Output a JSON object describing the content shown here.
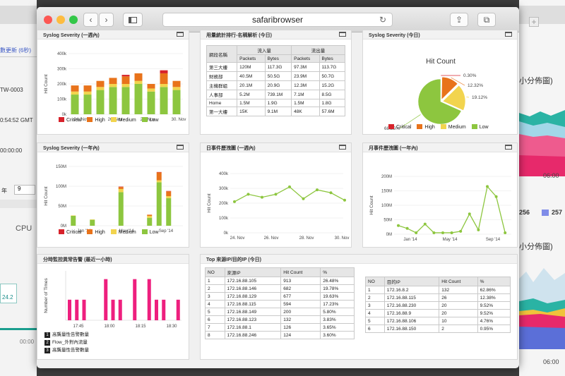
{
  "window": {
    "url": "safaribrowser"
  },
  "background": {
    "left_texts": [
      "數更新 (6秒)",
      "TW-0003",
      "0:54:52 GMT",
      "00:00:00",
      "年",
      "9",
      "CPU",
      "24.2",
      "00:00"
    ],
    "right_texts": [
      "小分佈圖)",
      "06:00",
      "256",
      "257",
      "小分佈圖)",
      "06:00"
    ]
  },
  "colors": {
    "critical": "#d7222b",
    "high": "#e8731b",
    "medium": "#f2d44e",
    "low": "#8dc63f",
    "line": "#8dc63f",
    "magenta": "#ee1f7e"
  },
  "legend": {
    "critical": "Critical",
    "high": "High",
    "medium": "Medium",
    "low": "Low"
  },
  "p1": {
    "title": "Syslog Severity (一週內)",
    "ylabel": "Hit Count",
    "yticks": [
      "400k",
      "300k",
      "200k",
      "100k",
      "0k"
    ],
    "xticks": [
      "24. Nov",
      "26. Nov",
      "28. Nov",
      "30. Nov"
    ],
    "chart_data": {
      "type": "bar",
      "stacked": true,
      "categories": [
        "23 Nov",
        "24 Nov",
        "25 Nov",
        "26 Nov",
        "27 Nov",
        "28 Nov",
        "29 Nov",
        "30 Nov",
        "1 Dec"
      ],
      "ylim": [
        0,
        400000
      ],
      "series": [
        {
          "name": "Low",
          "values": [
            130000,
            130000,
            160000,
            180000,
            180000,
            200000,
            150000,
            180000,
            160000
          ]
        },
        {
          "name": "Medium",
          "values": [
            20000,
            20000,
            20000,
            20000,
            20000,
            20000,
            20000,
            20000,
            20000
          ]
        },
        {
          "name": "High",
          "values": [
            40000,
            40000,
            40000,
            40000,
            50000,
            50000,
            30000,
            70000,
            40000
          ]
        },
        {
          "name": "Critical",
          "values": [
            0,
            0,
            0,
            0,
            10000,
            0,
            0,
            20000,
            0
          ]
        }
      ]
    }
  },
  "p2": {
    "title": "用量統計排行-名稱解析 (今日)",
    "h1": "網段名稱",
    "g1": "流入量",
    "g2": "流出量",
    "sub": [
      "Packets",
      "Bytes",
      "Packets",
      "Bytes"
    ],
    "rows": [
      [
        "第三大樓",
        "120M",
        "117.3G",
        "97.3M",
        "113.7G"
      ],
      [
        "財務部",
        "40.5M",
        "50.5G",
        "23.9M",
        "50.7G"
      ],
      [
        "主機群組",
        "20.1M",
        "20.9G",
        "12.3M",
        "15.2G"
      ],
      [
        "人事部",
        "5.2M",
        "739.1M",
        "7.1M",
        "8.5G"
      ],
      [
        "Home",
        "1.5M",
        "1.9G",
        "1.5M",
        "1.8G"
      ],
      [
        "第一大樓",
        "15K",
        "9.1M",
        "48K",
        "57.6M"
      ]
    ]
  },
  "p3": {
    "title": "Syslog Severity (今日)",
    "chart_title": "Hit Count",
    "chart_data": {
      "type": "pie",
      "labels": [
        "Critical",
        "High",
        "Medium",
        "Low"
      ],
      "values": [
        0.3,
        12.32,
        19.12,
        68.25
      ]
    },
    "labels": [
      "0.30%",
      "12.32%",
      "19.12%",
      "68.25%"
    ]
  },
  "p4": {
    "title": "Syslog Severity (一年內)",
    "ylabel": "Hit Count",
    "yticks": [
      "150M",
      "100M",
      "50M",
      "0M"
    ],
    "xticks": [
      "Jan '14",
      "May '14",
      "Sep '14"
    ],
    "chart_data": {
      "type": "bar",
      "stacked": true,
      "categories": [
        "Dec '13",
        "Jan '14",
        "Feb '14",
        "Mar '14",
        "Apr '14",
        "May '14",
        "Jun '14",
        "Jul '14",
        "Aug '14",
        "Sep '14",
        "Oct '14",
        "Nov '14"
      ],
      "ylim": [
        0,
        150000000
      ],
      "series": [
        {
          "name": "Low",
          "values": [
            25000000,
            0,
            15000000,
            0,
            0,
            85000000,
            0,
            0,
            20000000,
            110000000,
            70000000,
            0
          ]
        },
        {
          "name": "Medium",
          "values": [
            1000000,
            0,
            1000000,
            0,
            0,
            8000000,
            0,
            0,
            5000000,
            5000000,
            5000000,
            0
          ]
        },
        {
          "name": "High",
          "values": [
            0,
            0,
            0,
            0,
            0,
            5000000,
            0,
            0,
            3000000,
            20000000,
            12000000,
            0
          ]
        },
        {
          "name": "Critical",
          "values": [
            0,
            0,
            0,
            0,
            0,
            1000000,
            0,
            0,
            0,
            1000000,
            1000000,
            0
          ]
        }
      ]
    }
  },
  "p5": {
    "title": "日事件歷洩圖 (一週內)",
    "ylabel": "Hit Count",
    "yticks": [
      "400k",
      "300k",
      "200k",
      "100k",
      "0k"
    ],
    "xticks": [
      "24. Nov",
      "26. Nov",
      "28. Nov",
      "30. Nov"
    ],
    "chart_data": {
      "type": "line",
      "x": [
        "23 Nov",
        "24 Nov",
        "25 Nov",
        "26 Nov",
        "27 Nov",
        "28 Nov",
        "29 Nov",
        "30 Nov",
        "1 Dec"
      ],
      "y": [
        210000,
        260000,
        240000,
        260000,
        310000,
        230000,
        290000,
        270000,
        220000
      ],
      "ylim": [
        0,
        400000
      ]
    }
  },
  "p6": {
    "title": "月事件歷洩圖 (一年內)",
    "ylabel": "Hit Count",
    "yticks": [
      "200M",
      "150M",
      "100M",
      "50M",
      "0M"
    ],
    "xticks": [
      "Jan '14",
      "May '14",
      "Sep '14"
    ],
    "chart_data": {
      "type": "line",
      "x": [
        "Nov '13",
        "Dec '13",
        "Jan '14",
        "Feb '14",
        "Mar '14",
        "Apr '14",
        "May '14",
        "Jun '14",
        "Jul '14",
        "Aug '14",
        "Sep '14",
        "Oct '14",
        "Nov '14"
      ],
      "y": [
        30000000,
        20000000,
        5000000,
        35000000,
        5000000,
        5000000,
        5000000,
        10000000,
        70000000,
        15000000,
        165000000,
        130000000,
        5000000
      ],
      "ylim": [
        0,
        200000000
      ]
    }
  },
  "p7": {
    "title": "分時監控異常告警 (最近一小時)",
    "ylabel": "Number of Times",
    "xticks": [
      "17:45",
      "18:00",
      "18:15",
      "18:30"
    ],
    "chart_data": {
      "type": "bar",
      "categories": [
        "17:36",
        "17:40",
        "17:44",
        "17:48",
        "17:52",
        "17:56",
        "18:00",
        "18:04",
        "18:08",
        "18:12",
        "18:16",
        "18:20",
        "18:24",
        "18:28",
        "18:32",
        "18:36"
      ],
      "values": [
        1,
        1,
        1,
        0,
        0,
        2,
        1,
        1,
        0,
        2,
        0,
        2,
        1,
        1,
        0,
        1
      ],
      "ylim": [
        0,
        2.4
      ]
    },
    "legend": [
      {
        "n": "1",
        "label": "高龔量性告警數量"
      },
      {
        "n": "2",
        "label": "Flow_外對內流量"
      },
      {
        "n": "3",
        "label": "高龔量性告警數量"
      }
    ]
  },
  "p8": {
    "title": "Top 來源IP/目的IP (今日)",
    "src": {
      "headers": [
        "NO",
        "來源IP",
        "Hit Count",
        "%"
      ],
      "rows": [
        [
          "1",
          "172.16.88.105",
          "913",
          "26.48%"
        ],
        [
          "2",
          "172.16.88.146",
          "682",
          "19.78%"
        ],
        [
          "3",
          "172.16.88.129",
          "677",
          "19.63%"
        ],
        [
          "4",
          "172.16.88.115",
          "594",
          "17.23%"
        ],
        [
          "5",
          "172.16.88.149",
          "200",
          "5.80%"
        ],
        [
          "6",
          "172.16.88.123",
          "132",
          "3.83%"
        ],
        [
          "7",
          "172.16.88.1",
          "126",
          "3.65%"
        ],
        [
          "8",
          "172.16.88.246",
          "124",
          "3.60%"
        ]
      ]
    },
    "dst": {
      "headers": [
        "NO",
        "目的IP",
        "Hit Count",
        "%"
      ],
      "rows": [
        [
          "1",
          "172.16.8.2",
          "132",
          "62.86%"
        ],
        [
          "2",
          "172.16.88.115",
          "26",
          "12.38%"
        ],
        [
          "3",
          "172.16.88.230",
          "20",
          "9.52%"
        ],
        [
          "4",
          "172.16.88.9",
          "20",
          "9.52%"
        ],
        [
          "5",
          "172.16.88.106",
          "10",
          "4.76%"
        ],
        [
          "6",
          "172.16.88.150",
          "2",
          "0.95%"
        ]
      ]
    }
  }
}
